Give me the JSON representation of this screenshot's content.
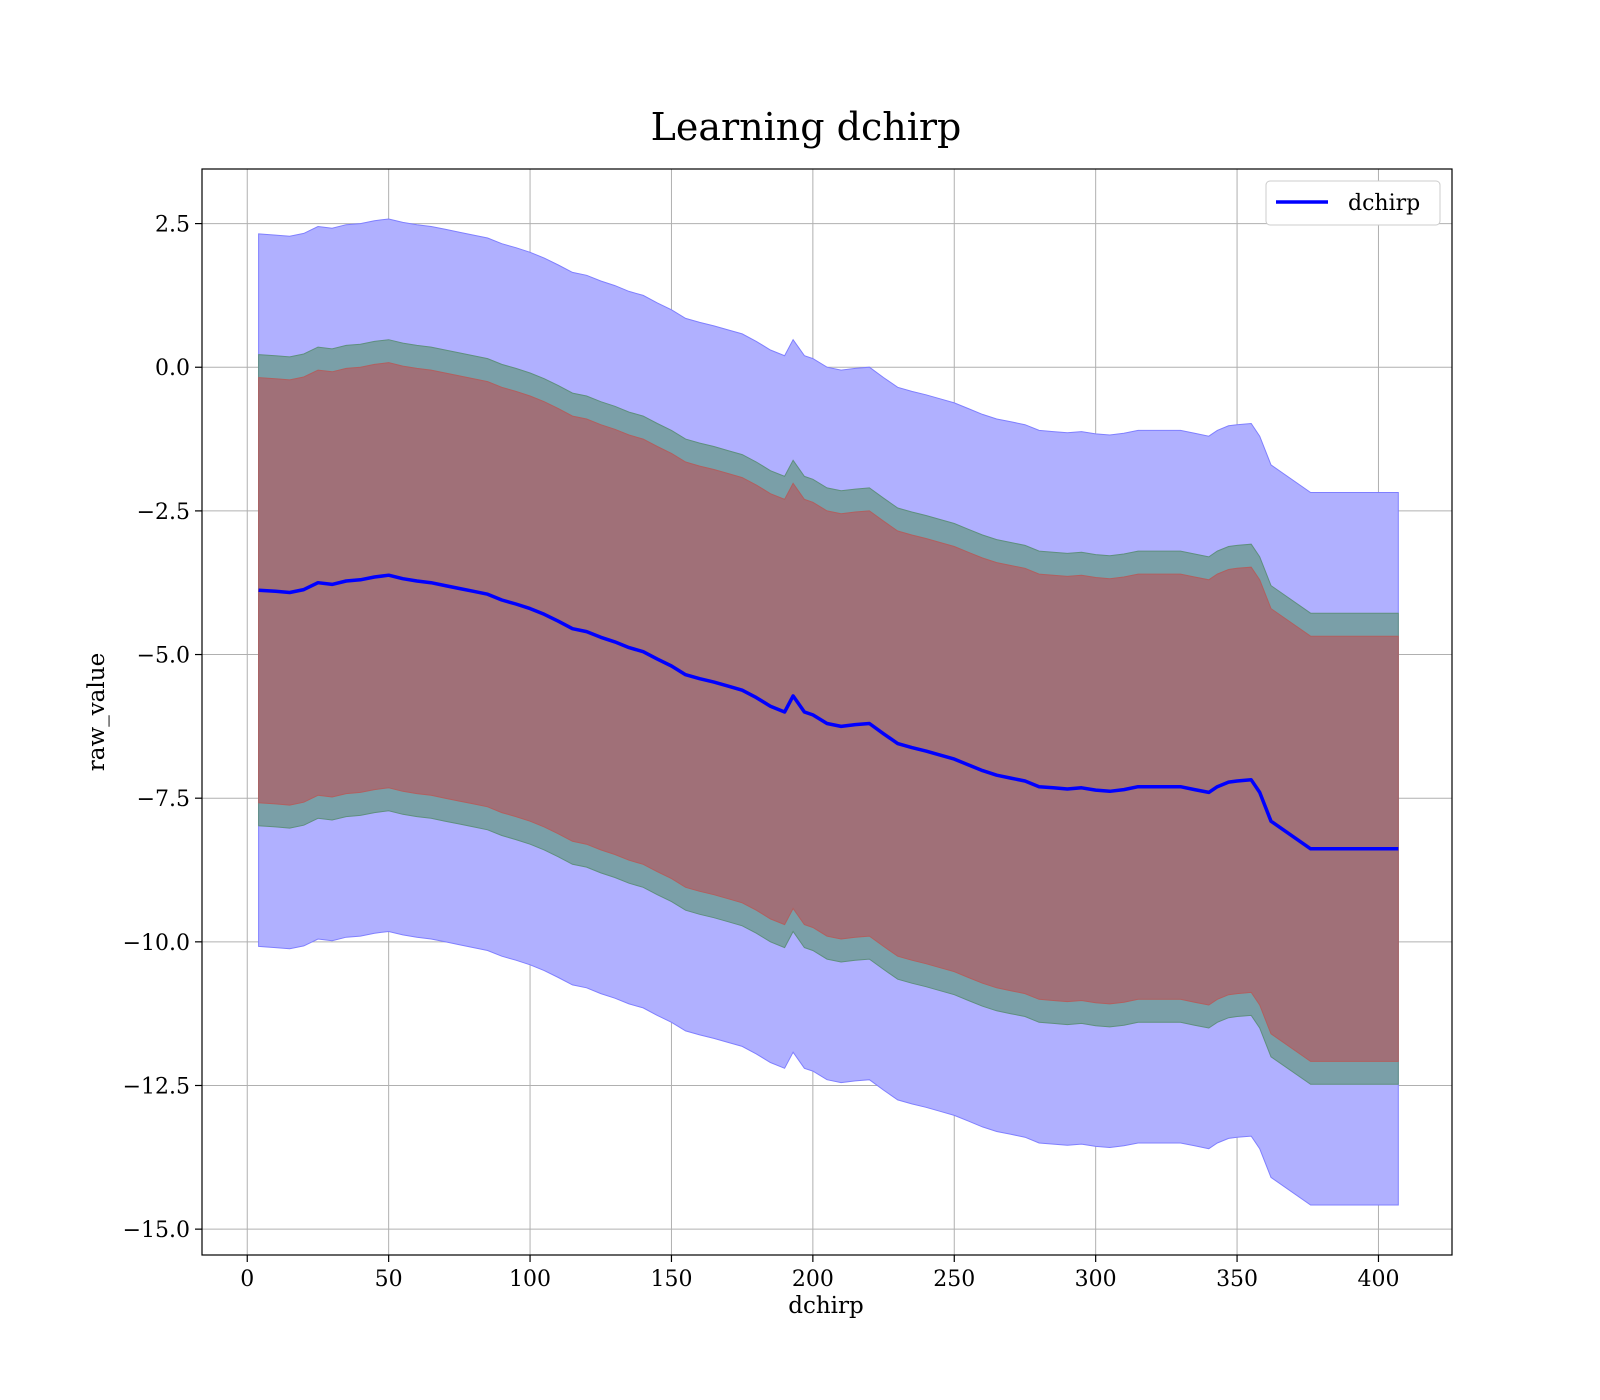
{
  "chart_data": {
    "type": "line",
    "title": "Learning dchirp",
    "xlabel": "dchirp",
    "ylabel": "raw_value",
    "xlim": [
      -16,
      426
    ],
    "ylim": [
      -15.45,
      3.45
    ],
    "xticks": [
      0,
      50,
      100,
      150,
      200,
      250,
      300,
      350,
      400
    ],
    "yticks": [
      2.5,
      0.0,
      -2.5,
      -5.0,
      -7.5,
      -10.0,
      -12.5,
      -15.0
    ],
    "xtick_labels": [
      "0",
      "50",
      "100",
      "150",
      "200",
      "250",
      "300",
      "350",
      "400"
    ],
    "ytick_labels": [
      "2.5",
      "0.0",
      "−2.5",
      "−5.0",
      "−7.5",
      "−10.0",
      "−12.5",
      "−15.0"
    ],
    "grid": true,
    "legend": {
      "position": "top-right",
      "entries": [
        "dchirp"
      ]
    },
    "colors": {
      "line": "#0000ff",
      "band_outer": "#b0b0ff",
      "band_middle": "#7a9fa8",
      "band_inner": "#a07078"
    },
    "series": [
      {
        "name": "dchirp",
        "x": [
          4,
          10,
          15,
          20,
          25,
          30,
          35,
          40,
          45,
          50,
          55,
          60,
          65,
          70,
          75,
          80,
          85,
          90,
          95,
          100,
          105,
          110,
          115,
          120,
          125,
          130,
          135,
          140,
          145,
          150,
          155,
          160,
          165,
          170,
          175,
          180,
          185,
          190,
          193,
          197,
          200,
          205,
          210,
          215,
          220,
          225,
          230,
          235,
          240,
          245,
          250,
          255,
          260,
          265,
          270,
          275,
          280,
          285,
          290,
          295,
          300,
          305,
          310,
          315,
          320,
          325,
          330,
          335,
          340,
          343,
          347,
          350,
          355,
          358,
          362,
          376,
          407
        ],
        "y": [
          -3.88,
          -3.9,
          -3.92,
          -3.87,
          -3.75,
          -3.78,
          -3.72,
          -3.7,
          -3.65,
          -3.62,
          -3.68,
          -3.72,
          -3.75,
          -3.8,
          -3.85,
          -3.9,
          -3.95,
          -4.05,
          -4.12,
          -4.2,
          -4.3,
          -4.42,
          -4.55,
          -4.6,
          -4.7,
          -4.78,
          -4.88,
          -4.95,
          -5.08,
          -5.2,
          -5.35,
          -5.42,
          -5.48,
          -5.55,
          -5.62,
          -5.75,
          -5.9,
          -6.0,
          -5.72,
          -6.0,
          -6.05,
          -6.2,
          -6.25,
          -6.22,
          -6.2,
          -6.38,
          -6.55,
          -6.62,
          -6.68,
          -6.75,
          -6.82,
          -6.92,
          -7.02,
          -7.1,
          -7.15,
          -7.2,
          -7.3,
          -7.32,
          -7.34,
          -7.32,
          -7.36,
          -7.38,
          -7.35,
          -7.3,
          -7.3,
          -7.3,
          -7.3,
          -7.35,
          -7.4,
          -7.3,
          -7.22,
          -7.2,
          -7.18,
          -7.4,
          -7.9,
          -8.38,
          -8.38
        ],
        "band_outer_half_width": 6.2,
        "band_middle_half_width": 4.1,
        "band_inner_half_width": 3.7
      }
    ]
  }
}
